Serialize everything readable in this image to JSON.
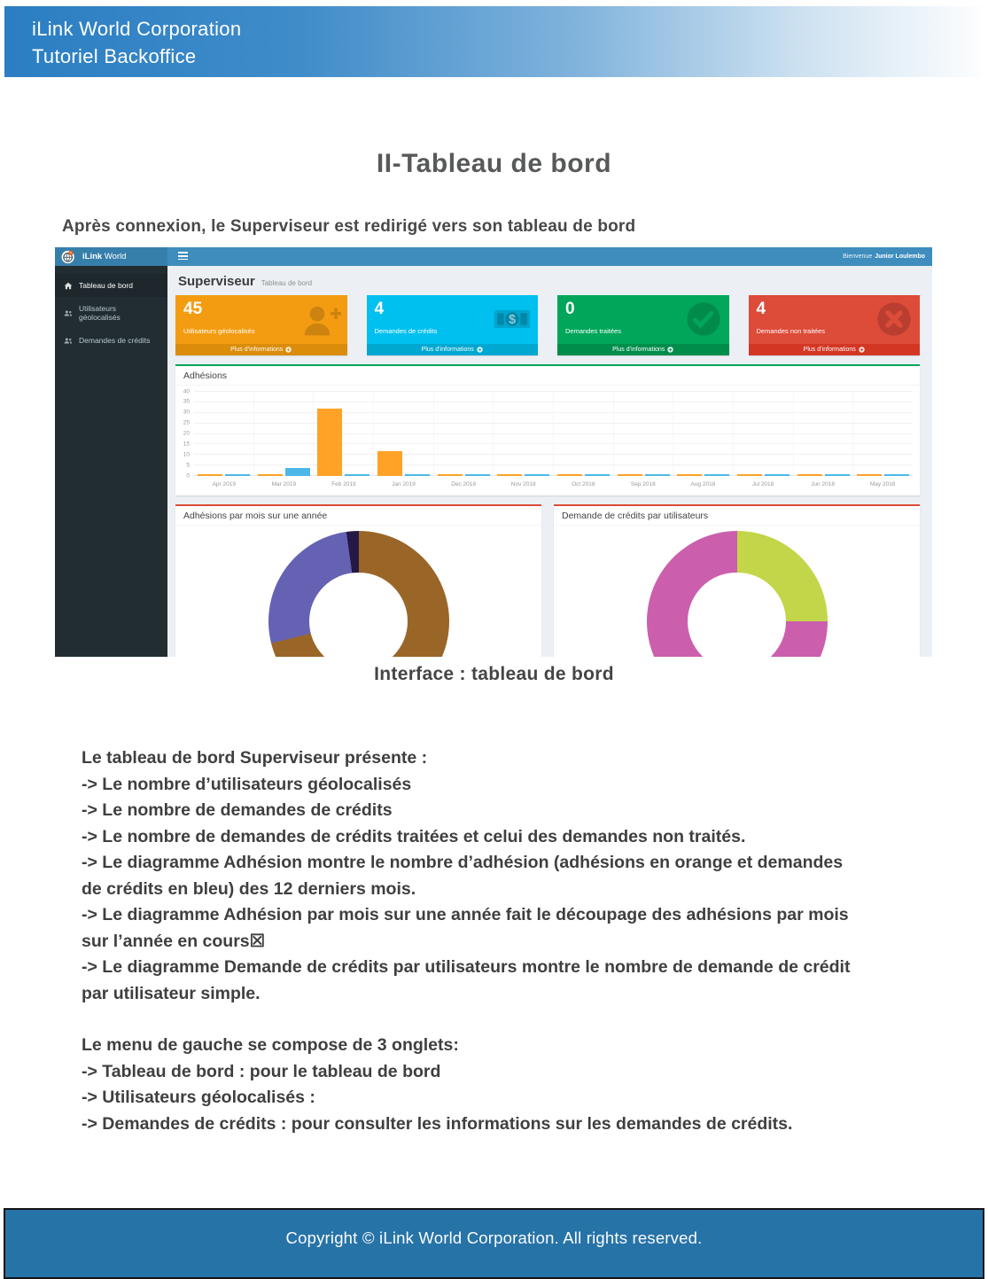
{
  "doc": {
    "header": {
      "line1": "iLink World Corporation",
      "line2": "Tutoriel Backoffice"
    },
    "title": "II-Tableau de bord",
    "intro": "Après connexion, le Superviseur est redirigé vers son tableau de bord",
    "caption": "Interface : tableau de bord",
    "body": {
      "paragraphs": [
        {
          "lines": [
            "Le tableau de bord Superviseur présente :",
            "-> Le nombre d’utilisateurs géolocalisés",
            "-> Le nombre de demandes de crédits",
            "-> Le nombre de demandes de crédits traitées et celui des demandes non traités.",
            "-> Le diagramme Adhésion montre le nombre d’adhésion (adhésions en orange et demandes",
            "de crédits en bleu) des 12 derniers mois.",
            "-> Le diagramme Adhésion par mois sur une année fait le découpage des adhésions par mois",
            "sur l’année en cours☒",
            "-> Le diagramme Demande de crédits par utilisateurs montre le nombre de demande de crédit",
            "par utilisateur simple."
          ]
        },
        {
          "lines": [
            "Le menu de gauche se compose de 3 onglets:",
            "-> Tableau de bord : pour le tableau de bord",
            "-> Utilisateurs géolocalisés :",
            "-> Demandes de crédits : pour consulter les informations sur les demandes de crédits."
          ]
        }
      ]
    },
    "footer": "Copyright © iLink World Corporation. All rights reserved."
  },
  "dashboard": {
    "brand": {
      "bold": "iLink",
      "regular": "World"
    },
    "nav": {
      "welcome_prefix": "Bienvenue",
      "welcome_name": "Junior Loulembo"
    },
    "sidebar": {
      "items": [
        {
          "label": "Tableau de bord",
          "icon": "home-icon",
          "active": true
        },
        {
          "label": "Utilisateurs géolocalisés",
          "icon": "users-icon",
          "active": false
        },
        {
          "label": "Demandes de crédits",
          "icon": "users-icon",
          "active": false
        }
      ]
    },
    "content_header": {
      "title": "Superviseur",
      "subtitle": "Tableau de bord"
    },
    "more_info_label": "Plus d’informations",
    "cards": [
      {
        "value": "45",
        "label": "Utilisateurs géolocalisés",
        "color": "#f39c12",
        "footer_color": "#da8c0a",
        "icon": "user-plus-icon"
      },
      {
        "value": "4",
        "label": "Demandes de crédits",
        "color": "#00c0ef",
        "footer_color": "#00a7d0",
        "icon": "banknote-icon"
      },
      {
        "value": "0",
        "label": "Demandes traitées",
        "color": "#00a65a",
        "footer_color": "#008d4c",
        "icon": "check-circle-icon"
      },
      {
        "value": "4",
        "label": "Demandes non traitées",
        "color": "#dd4b39",
        "footer_color": "#d33724",
        "icon": "x-circle-icon"
      }
    ]
  },
  "chart_data": [
    {
      "type": "bar",
      "title": "Adhésions",
      "accent": "#00a65a",
      "categories": [
        "Apr 2019",
        "Mar 2019",
        "Feb 2019",
        "Jan 2019",
        "Dec 2018",
        "Nov 2018",
        "Oct 2018",
        "Sep 2018",
        "Aug 2018",
        "Jul 2018",
        "Jun 2018",
        "May 2018"
      ],
      "series": [
        {
          "name": "Adhésions",
          "color": "#ffa226",
          "values": [
            0,
            0,
            32,
            12,
            0,
            1,
            0,
            0,
            0,
            0,
            0,
            0
          ]
        },
        {
          "name": "Demandes de crédits",
          "color": "#4cb8e8",
          "values": [
            0,
            4,
            0,
            0,
            0,
            0,
            0,
            0,
            0,
            0,
            0,
            0
          ]
        }
      ],
      "ylim": [
        0,
        40
      ],
      "yticks": [
        0,
        5,
        10,
        15,
        20,
        25,
        30,
        35,
        40
      ],
      "grid": true,
      "legend": false
    },
    {
      "type": "pie",
      "donut": true,
      "title": "Adhésions par mois sur une année",
      "accent": "#dd4b39",
      "slices": [
        {
          "value": 32,
          "color": "#9a6628"
        },
        {
          "value": 12,
          "color": "#6562b4"
        },
        {
          "value": 1,
          "color": "#241945"
        }
      ]
    },
    {
      "type": "pie",
      "donut": true,
      "title": "Demande de crédits par utilisateurs",
      "accent": "#dd4b39",
      "slices": [
        {
          "value": 1,
          "color": "#c3d64a"
        },
        {
          "value": 3,
          "color": "#cb5fad"
        }
      ]
    }
  ]
}
